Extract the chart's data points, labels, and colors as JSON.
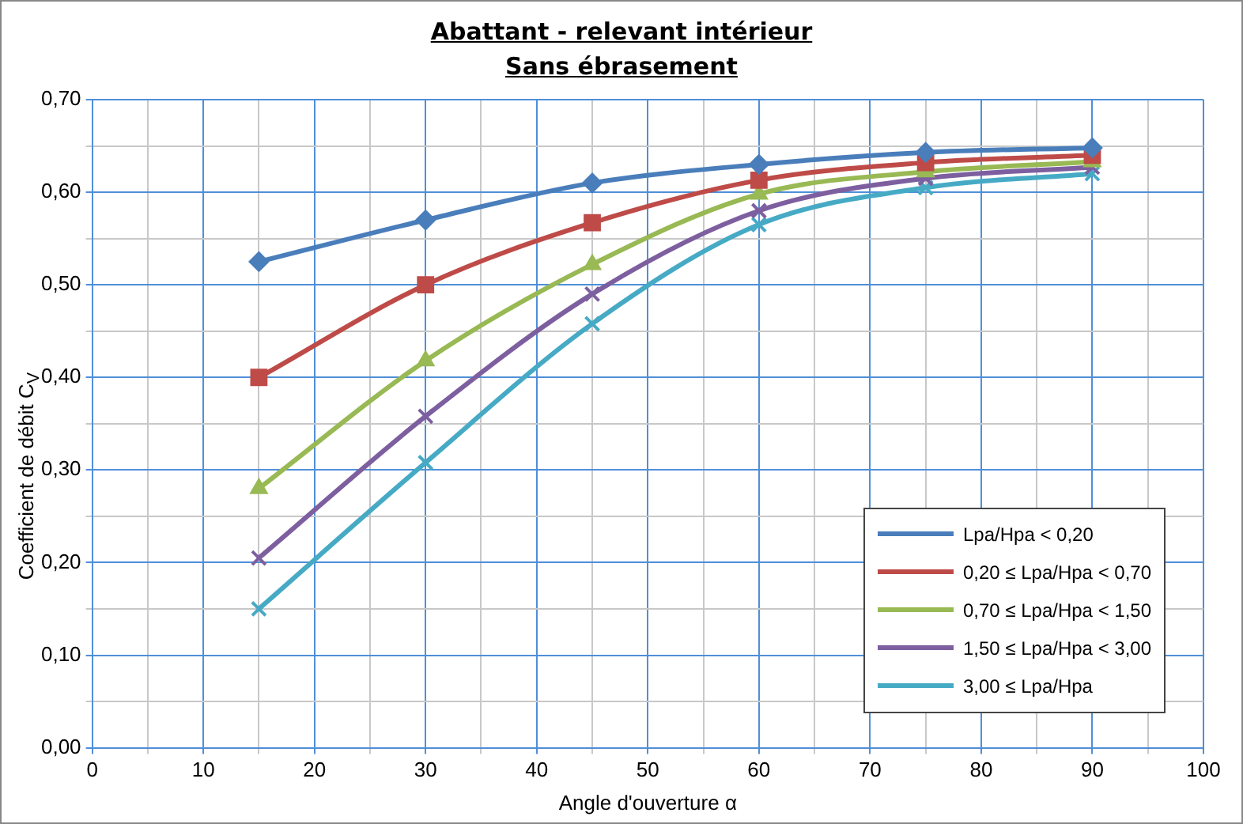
{
  "chart_data": {
    "type": "line",
    "title": "Abattant - relevant intérieur",
    "subtitle": "Sans ébrasement",
    "xlabel": "Angle d'ouverture α",
    "ylabel": "Coefficient  de débit C$_{V}$",
    "x": [
      15,
      30,
      45,
      60,
      75,
      90
    ],
    "series": [
      {
        "name": "Lpa/Hpa < 0,20",
        "color": "#4a7ebb",
        "marker": "diamond",
        "values": [
          0.525,
          0.57,
          0.61,
          0.63,
          0.643,
          0.648
        ]
      },
      {
        "name": "0,20 ≤ Lpa/Hpa < 0,70",
        "color": "#be4b48",
        "marker": "square",
        "values": [
          0.4,
          0.5,
          0.567,
          0.613,
          0.632,
          0.64
        ]
      },
      {
        "name": "0,70 ≤ Lpa/Hpa < 1,50",
        "color": "#98b954",
        "marker": "triangle",
        "values": [
          0.28,
          0.418,
          0.522,
          0.598,
          0.622,
          0.633
        ]
      },
      {
        "name": "1,50 ≤ Lpa/Hpa < 3,00",
        "color": "#7d5fa0",
        "marker": "cross",
        "values": [
          0.205,
          0.358,
          0.49,
          0.58,
          0.615,
          0.627
        ]
      },
      {
        "name": "3,00 ≤ Lpa/Hpa",
        "color": "#46aac5",
        "marker": "cross",
        "values": [
          0.15,
          0.308,
          0.458,
          0.565,
          0.605,
          0.62
        ]
      }
    ],
    "xlim": [
      0,
      100
    ],
    "xticks": [
      0,
      {
        "value": 5,
        "label": null
      },
      10,
      {
        "value": 15,
        "label": null
      },
      20,
      {
        "value": 25,
        "label": null
      },
      30,
      {
        "value": 35,
        "label": null
      },
      40,
      {
        "value": 45,
        "label": null
      },
      50,
      {
        "value": 55,
        "label": null
      },
      60,
      {
        "value": 65,
        "label": null
      },
      70,
      {
        "value": 75,
        "label": null
      },
      80,
      {
        "value": 85,
        "label": null
      },
      90,
      {
        "value": 95,
        "label": null
      },
      100
    ],
    "ylim": [
      0,
      0.7
    ],
    "yticks": [
      {
        "value": 0,
        "label": "0,00"
      },
      {
        "value": 0.05,
        "label": null
      },
      {
        "value": 0.1,
        "label": "0,10"
      },
      {
        "value": 0.15,
        "label": null
      },
      {
        "value": 0.2,
        "label": "0,20"
      },
      {
        "value": 0.25,
        "label": null
      },
      {
        "value": 0.3,
        "label": "0,30"
      },
      {
        "value": 0.35,
        "label": null
      },
      {
        "value": 0.4,
        "label": "0,40"
      },
      {
        "value": 0.45,
        "label": null
      },
      {
        "value": 0.5,
        "label": "0,50"
      },
      {
        "value": 0.55,
        "label": null
      },
      {
        "value": 0.6,
        "label": "0,60"
      },
      {
        "value": 0.65,
        "label": null
      },
      {
        "value": 0.7,
        "label": "0,70"
      }
    ],
    "grid": true,
    "legend": "bottom right"
  }
}
